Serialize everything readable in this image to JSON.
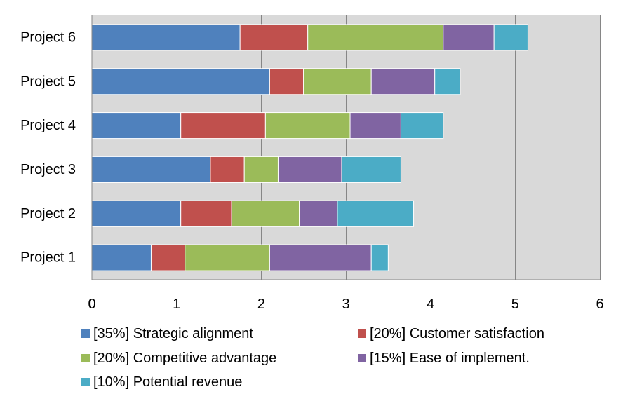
{
  "chart_data": {
    "type": "bar",
    "orientation": "horizontal",
    "stacked": true,
    "categories": [
      "Project 1",
      "Project 2",
      "Project 3",
      "Project 4",
      "Project 5",
      "Project 6"
    ],
    "series": [
      {
        "name": "[35%] Strategic alignment",
        "color": "#4f81bd",
        "values": [
          0.7,
          1.05,
          1.4,
          1.05,
          2.1,
          1.75
        ]
      },
      {
        "name": "[20%] Customer satisfaction",
        "color": "#c0504d",
        "values": [
          0.4,
          0.6,
          0.4,
          1.0,
          0.4,
          0.8
        ]
      },
      {
        "name": "[20%] Competitive advantage",
        "color": "#9bbb59",
        "values": [
          1.0,
          0.8,
          0.4,
          1.0,
          0.8,
          1.6
        ]
      },
      {
        "name": "[15%] Ease of implement.",
        "color": "#8064a2",
        "values": [
          1.2,
          0.45,
          0.75,
          0.6,
          0.75,
          0.6
        ]
      },
      {
        "name": "[10%] Potential revenue",
        "color": "#4bacc6",
        "values": [
          0.2,
          0.9,
          0.7,
          0.5,
          0.3,
          0.4
        ]
      }
    ],
    "xlim": [
      0,
      6
    ],
    "x_ticks": [
      "0",
      "1",
      "2",
      "3",
      "4",
      "5",
      "6"
    ],
    "grid": true,
    "plot_background": "#d9d9d9",
    "legend_position": "bottom"
  }
}
